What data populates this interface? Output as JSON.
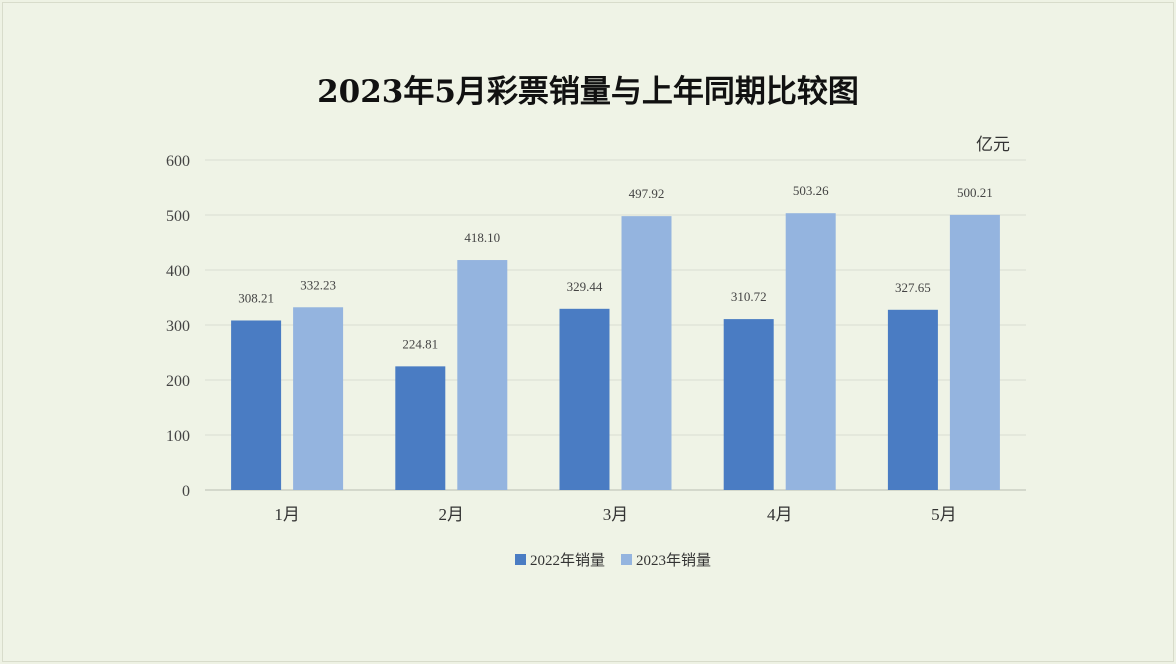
{
  "chart_data": {
    "type": "bar",
    "title": "2023年5月彩票销量与上年同期比较图",
    "unit": "亿元",
    "categories": [
      "1月",
      "2月",
      "3月",
      "4月",
      "5月"
    ],
    "series": [
      {
        "name": "2022年销量",
        "color": "#4a7cc3",
        "values": [
          308.21,
          224.81,
          329.44,
          310.72,
          327.65
        ],
        "labels": [
          "308.21",
          "224.81",
          "329.44",
          "310.72",
          "327.65"
        ]
      },
      {
        "name": "2023年销量",
        "color": "#94b4df",
        "values": [
          332.23,
          418.1,
          497.92,
          503.26,
          500.21
        ],
        "labels": [
          "332.23",
          "418.10",
          "497.92",
          "503.26",
          "500.21"
        ]
      }
    ],
    "ylim": [
      0,
      600
    ],
    "yticks": [
      0,
      100,
      200,
      300,
      400,
      500,
      600
    ],
    "grid": true,
    "legend": "bottom"
  }
}
